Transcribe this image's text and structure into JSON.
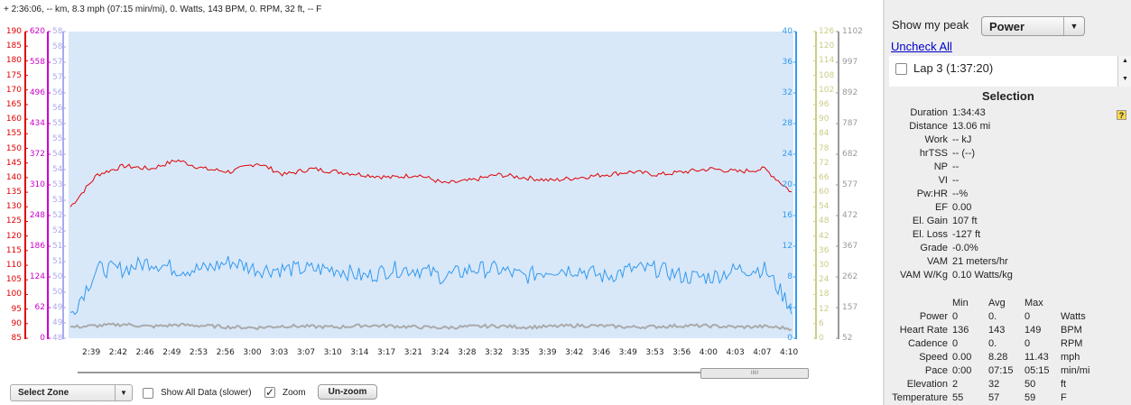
{
  "status_line": "+ 2:36:06, -- km, 8.3 mph (07:15 min/mi), 0. Watts, 143 BPM, 0. RPM, 32 ft, -- F",
  "colors": {
    "heart_rate": "#e00000",
    "power": "#cc00cc",
    "cadence": "#aaaaee",
    "speed": "#3399ee",
    "elevation": "#aaaaaa",
    "temperature": "#e8e8a8",
    "plot_bg": "#d8e8f9"
  },
  "axes": {
    "hr_ticks": [
      "190",
      "185",
      "180",
      "175",
      "170",
      "165",
      "160",
      "155",
      "150",
      "145",
      "140",
      "135",
      "130",
      "125",
      "120",
      "115",
      "110",
      "105",
      "100",
      "95",
      "90",
      "85"
    ],
    "power_ticks": [
      "620",
      "558",
      "496",
      "434",
      "372",
      "310",
      "248",
      "186",
      "124",
      "62",
      "0"
    ],
    "cadence_ticks": [
      "58",
      "58",
      "57",
      "57",
      "56",
      "56",
      "55",
      "55",
      "54",
      "54",
      "53",
      "53",
      "52",
      "52",
      "51",
      "51",
      "50",
      "50",
      "49",
      "49",
      "48"
    ],
    "speed_ticks": [
      "40",
      "36",
      "32",
      "28",
      "24",
      "20",
      "16",
      "12",
      "8",
      "4",
      "0"
    ],
    "temp_ticks": [
      "126",
      "120",
      "114",
      "108",
      "102",
      "96",
      "90",
      "84",
      "78",
      "72",
      "66",
      "60",
      "54",
      "48",
      "42",
      "36",
      "30",
      "24",
      "18",
      "12",
      "6",
      "0"
    ],
    "elev_ticks": [
      "1102",
      "997",
      "892",
      "787",
      "682",
      "577",
      "472",
      "367",
      "262",
      "157",
      "52"
    ],
    "time_ticks": [
      "2:39",
      "2:42",
      "2:46",
      "2:49",
      "2:53",
      "2:56",
      "3:00",
      "3:03",
      "3:07",
      "3:10",
      "3:14",
      "3:17",
      "3:21",
      "3:24",
      "3:28",
      "3:32",
      "3:35",
      "3:39",
      "3:42",
      "3:46",
      "3:49",
      "3:53",
      "3:56",
      "4:00",
      "4:03",
      "4:07",
      "4:10"
    ]
  },
  "chart_data": {
    "type": "line",
    "x_label": "",
    "x_range": [
      "2:37",
      "4:11"
    ],
    "series": [
      {
        "key": "heart_rate",
        "ylim": [
          85,
          190
        ],
        "approx_values": [
          130,
          141,
          144,
          143,
          146,
          143,
          142,
          145,
          141,
          143,
          142,
          141,
          140,
          141,
          138,
          139,
          141,
          140,
          139,
          140,
          141,
          142,
          141,
          142,
          143,
          142,
          143,
          135
        ]
      },
      {
        "key": "speed",
        "ylim": [
          0,
          40
        ],
        "approx_values": [
          3,
          9,
          9,
          10,
          9,
          9,
          10,
          9,
          9,
          9,
          9,
          8,
          9,
          9,
          8,
          9,
          9,
          8,
          9,
          9,
          8,
          9,
          9,
          8,
          8,
          9,
          9,
          4
        ]
      },
      {
        "key": "elevation",
        "ylim": [
          0,
          1102
        ],
        "approx_values": [
          40,
          45,
          50,
          42,
          48,
          45,
          40,
          38,
          44,
          42,
          40,
          46,
          44,
          40,
          38,
          42,
          44,
          40,
          42,
          46,
          44,
          40,
          42,
          45,
          44,
          40,
          42,
          35
        ]
      }
    ]
  },
  "bottom_controls": {
    "zone_select": "Select Zone",
    "show_all_label": "Show All Data (slower)",
    "show_all_checked": false,
    "zoom_label": "Zoom",
    "zoom_checked": true,
    "unzoom_label": "Un-zoom",
    "scroll_grip": "IIIII"
  },
  "right_panel": {
    "peak_label": "Show my peak",
    "peak_value": "Power",
    "uncheck_all": "Uncheck All",
    "lap_label": "Lap 3 (1:37:20)",
    "selection_title": "Selection",
    "help_icon": "?",
    "stats": [
      {
        "k": "Duration",
        "v": "1:34:43"
      },
      {
        "k": "Distance",
        "v": "13.06 mi"
      },
      {
        "k": "Work",
        "v": "-- kJ"
      },
      {
        "k": "hrTSS",
        "v": "-- (--)"
      },
      {
        "k": "NP",
        "v": "--"
      },
      {
        "k": "VI",
        "v": "--"
      },
      {
        "k": "Pw:HR",
        "v": "--%"
      },
      {
        "k": "EF",
        "v": "0.00"
      },
      {
        "k": "El. Gain",
        "v": "107 ft"
      },
      {
        "k": "El. Loss",
        "v": "-127 ft"
      },
      {
        "k": "Grade",
        "v": "-0.0%"
      },
      {
        "k": "VAM",
        "v": "21 meters/hr"
      },
      {
        "k": "VAM W/Kg",
        "v": "0.10 Watts/kg"
      }
    ],
    "minmax_headers": [
      "Min",
      "Avg",
      "Max"
    ],
    "minmax_rows": [
      {
        "k": "Power",
        "min": "0",
        "avg": "0.",
        "max": "0",
        "unit": "Watts"
      },
      {
        "k": "Heart Rate",
        "min": "136",
        "avg": "143",
        "max": "149",
        "unit": "BPM"
      },
      {
        "k": "Cadence",
        "min": "0",
        "avg": "0.",
        "max": "0",
        "unit": "RPM"
      },
      {
        "k": "Speed",
        "min": "0.00",
        "avg": "8.28",
        "max": "11.43",
        "unit": "mph"
      },
      {
        "k": "Pace",
        "min": "0:00",
        "avg": "07:15",
        "max": "05:15",
        "unit": "min/mi"
      },
      {
        "k": "Elevation",
        "min": "2",
        "avg": "32",
        "max": "50",
        "unit": "ft"
      },
      {
        "k": "Temperature",
        "min": "55",
        "avg": "57",
        "max": "59",
        "unit": "F"
      }
    ]
  }
}
